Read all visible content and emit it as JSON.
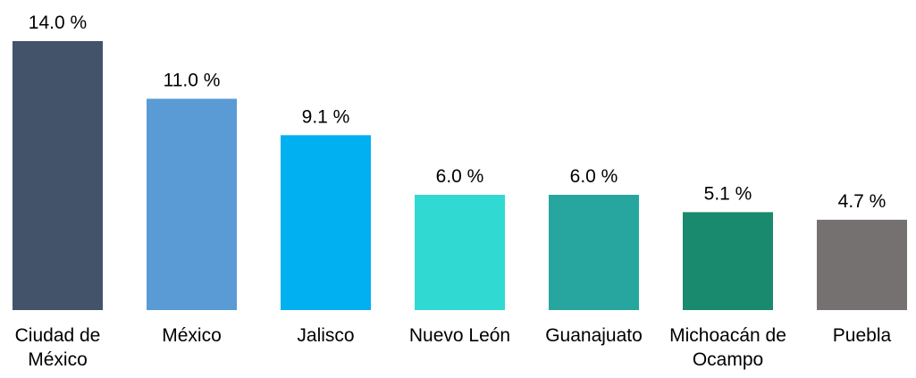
{
  "chart_data": {
    "type": "bar",
    "categories": [
      [
        "Ciudad de",
        "México"
      ],
      [
        "México"
      ],
      [
        "Jalisco"
      ],
      [
        "Nuevo León"
      ],
      [
        "Guanajuato"
      ],
      [
        "Michoacán de",
        "Ocampo"
      ],
      [
        "Puebla"
      ]
    ],
    "values": [
      14.0,
      11.0,
      9.1,
      6.0,
      6.0,
      5.1,
      4.7
    ],
    "value_labels": [
      "14.0 %",
      "11.0 %",
      "9.1 %",
      "6.0 %",
      "6.0 %",
      "5.1 %",
      "4.7 %"
    ],
    "colors": [
      "#435369",
      "#5b9bd5",
      "#00b0f0",
      "#31d9d3",
      "#26a69f",
      "#1a8a6e",
      "#767171"
    ],
    "ylim": [
      0,
      14.0
    ],
    "grid": false,
    "legend": "none"
  }
}
